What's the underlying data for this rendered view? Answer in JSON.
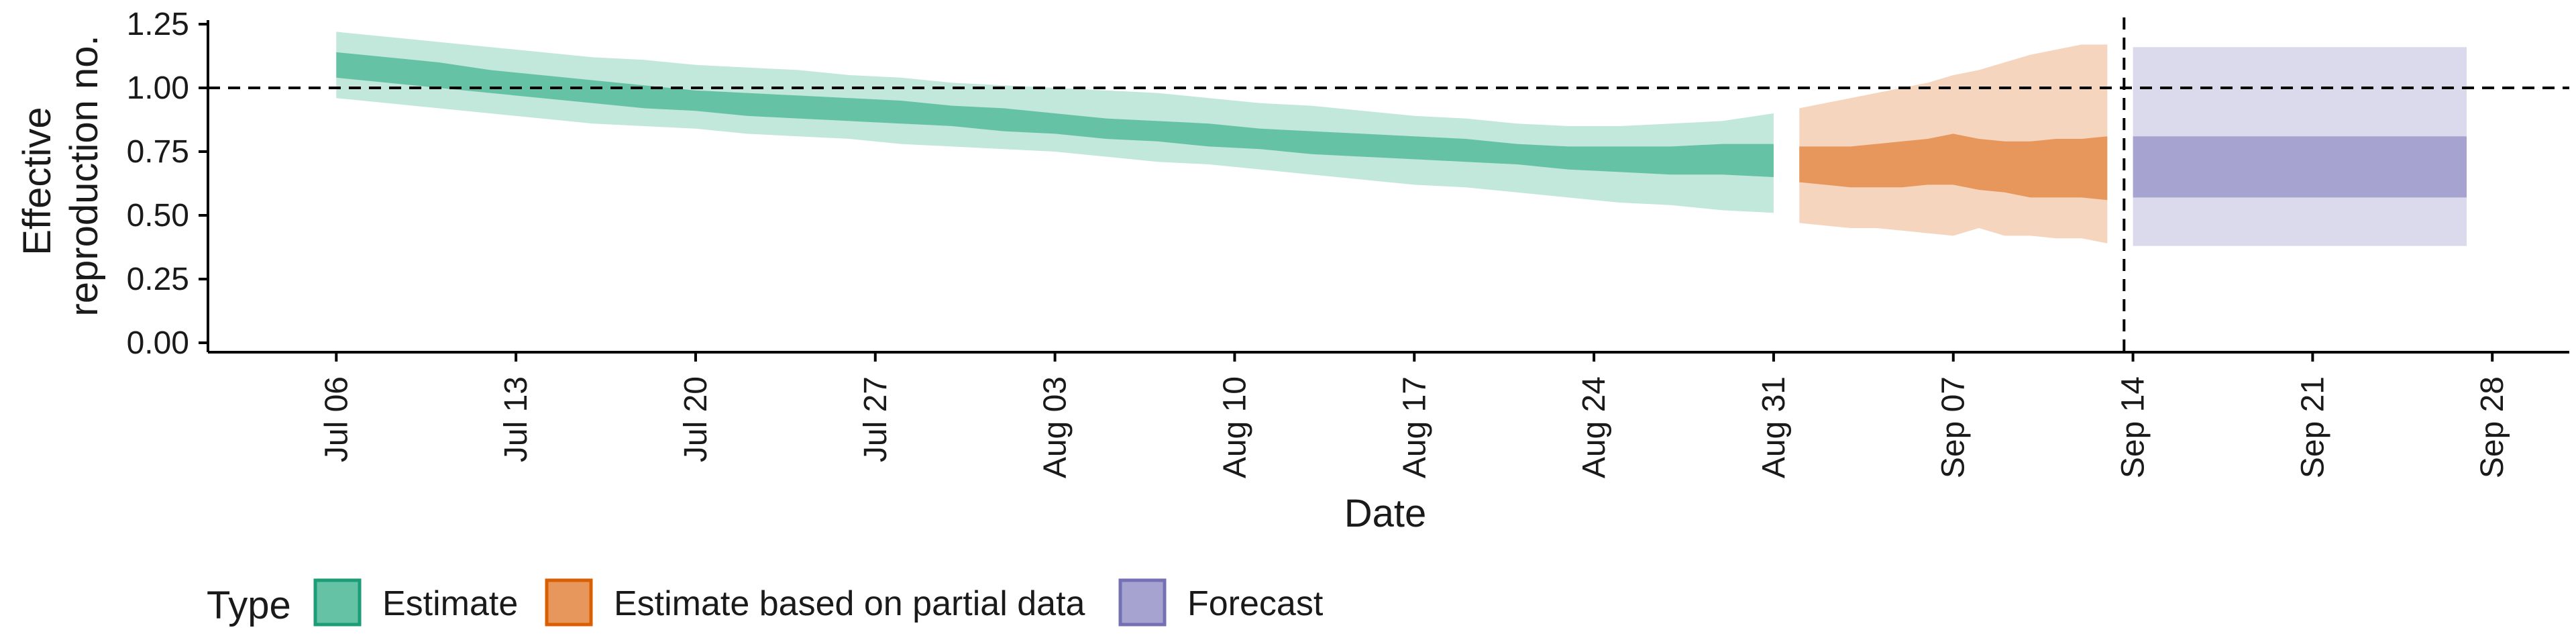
{
  "chart_data": {
    "type": "area",
    "title": "",
    "xlabel": "Date",
    "ylabel": [
      "Effective",
      "reproduction no."
    ],
    "ylim": [
      0,
      1.25
    ],
    "xlim": [
      "2020-07-01",
      "2020-10-01"
    ],
    "x_ticks": [
      {
        "date": "2020-07-06",
        "label": "Jul 06"
      },
      {
        "date": "2020-07-13",
        "label": "Jul 13"
      },
      {
        "date": "2020-07-20",
        "label": "Jul 20"
      },
      {
        "date": "2020-07-27",
        "label": "Jul 27"
      },
      {
        "date": "2020-08-03",
        "label": "Aug 03"
      },
      {
        "date": "2020-08-10",
        "label": "Aug 10"
      },
      {
        "date": "2020-08-17",
        "label": "Aug 17"
      },
      {
        "date": "2020-08-24",
        "label": "Aug 24"
      },
      {
        "date": "2020-08-31",
        "label": "Aug 31"
      },
      {
        "date": "2020-09-07",
        "label": "Sep 07"
      },
      {
        "date": "2020-09-14",
        "label": "Sep 14"
      },
      {
        "date": "2020-09-21",
        "label": "Sep 21"
      },
      {
        "date": "2020-09-28",
        "label": "Sep 28"
      }
    ],
    "y_ticks": [
      "0.00",
      "0.25",
      "0.50",
      "0.75",
      "1.00",
      "1.25"
    ],
    "reference_lines": {
      "horizontal_y": 1.0,
      "vertical_x": "2020-09-13",
      "style": "dashed"
    },
    "legend": {
      "title": "Type",
      "position": "bottom-left"
    },
    "series": [
      {
        "name": "Estimate",
        "color": "#66c2a5",
        "x": [
          "2020-07-06",
          "2020-07-08",
          "2020-07-10",
          "2020-07-12",
          "2020-07-14",
          "2020-07-16",
          "2020-07-18",
          "2020-07-20",
          "2020-07-22",
          "2020-07-24",
          "2020-07-26",
          "2020-07-28",
          "2020-07-30",
          "2020-08-01",
          "2020-08-03",
          "2020-08-05",
          "2020-08-07",
          "2020-08-09",
          "2020-08-11",
          "2020-08-13",
          "2020-08-15",
          "2020-08-17",
          "2020-08-19",
          "2020-08-21",
          "2020-08-23",
          "2020-08-25",
          "2020-08-27",
          "2020-08-29",
          "2020-08-31"
        ],
        "inner_lower": [
          1.04,
          1.02,
          1.0,
          0.98,
          0.96,
          0.94,
          0.92,
          0.91,
          0.89,
          0.88,
          0.87,
          0.86,
          0.85,
          0.83,
          0.82,
          0.8,
          0.79,
          0.77,
          0.76,
          0.74,
          0.73,
          0.72,
          0.71,
          0.7,
          0.68,
          0.67,
          0.66,
          0.66,
          0.65
        ],
        "inner_upper": [
          1.14,
          1.12,
          1.1,
          1.07,
          1.05,
          1.03,
          1.01,
          0.99,
          0.98,
          0.97,
          0.96,
          0.95,
          0.93,
          0.92,
          0.9,
          0.88,
          0.87,
          0.86,
          0.84,
          0.83,
          0.82,
          0.81,
          0.8,
          0.78,
          0.77,
          0.77,
          0.77,
          0.78,
          0.78
        ],
        "outer_lower": [
          0.96,
          0.94,
          0.92,
          0.9,
          0.88,
          0.86,
          0.85,
          0.84,
          0.82,
          0.81,
          0.8,
          0.78,
          0.77,
          0.76,
          0.75,
          0.73,
          0.71,
          0.7,
          0.68,
          0.66,
          0.64,
          0.62,
          0.61,
          0.59,
          0.57,
          0.55,
          0.54,
          0.52,
          0.51
        ],
        "outer_upper": [
          1.22,
          1.2,
          1.18,
          1.16,
          1.14,
          1.12,
          1.11,
          1.09,
          1.08,
          1.07,
          1.05,
          1.04,
          1.02,
          1.01,
          1.0,
          0.99,
          0.98,
          0.96,
          0.94,
          0.93,
          0.91,
          0.89,
          0.88,
          0.86,
          0.85,
          0.85,
          0.86,
          0.87,
          0.9
        ]
      },
      {
        "name": "Estimate based on partial data",
        "color": "#e8975c",
        "x": [
          "2020-09-01",
          "2020-09-02",
          "2020-09-03",
          "2020-09-04",
          "2020-09-05",
          "2020-09-06",
          "2020-09-07",
          "2020-09-08",
          "2020-09-09",
          "2020-09-10",
          "2020-09-11",
          "2020-09-12",
          "2020-09-13"
        ],
        "inner_lower": [
          0.63,
          0.62,
          0.61,
          0.61,
          0.61,
          0.62,
          0.62,
          0.6,
          0.59,
          0.57,
          0.57,
          0.57,
          0.56
        ],
        "inner_upper": [
          0.77,
          0.77,
          0.77,
          0.78,
          0.79,
          0.8,
          0.82,
          0.8,
          0.79,
          0.79,
          0.8,
          0.8,
          0.81
        ],
        "outer_lower": [
          0.47,
          0.46,
          0.45,
          0.45,
          0.44,
          0.43,
          0.42,
          0.45,
          0.42,
          0.42,
          0.41,
          0.41,
          0.39
        ],
        "outer_upper": [
          0.92,
          0.94,
          0.96,
          0.98,
          1.0,
          1.02,
          1.05,
          1.07,
          1.1,
          1.13,
          1.15,
          1.17,
          1.17
        ]
      },
      {
        "name": "Forecast",
        "color": "#a6a3d1",
        "x": [
          "2020-09-14",
          "2020-09-27"
        ],
        "inner_lower": [
          0.57,
          0.57
        ],
        "inner_upper": [
          0.81,
          0.81
        ],
        "outer_lower": [
          0.38,
          0.38
        ],
        "outer_upper": [
          1.16,
          1.16
        ]
      }
    ]
  }
}
